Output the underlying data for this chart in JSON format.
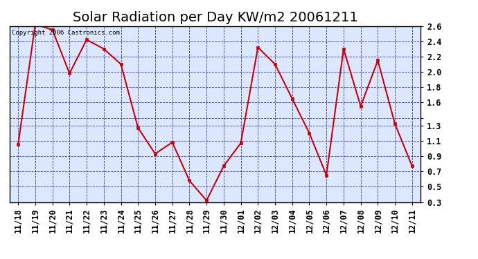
{
  "title": "Solar Radiation per Day KW/m2 20061211",
  "copyright": "Copyright 2006 Castronics.com",
  "labels": [
    "11/18",
    "11/19",
    "11/20",
    "11/21",
    "11/22",
    "11/23",
    "11/24",
    "11/25",
    "11/26",
    "11/27",
    "11/28",
    "11/29",
    "11/30",
    "12/01",
    "12/02",
    "12/03",
    "12/04",
    "12/05",
    "12/06",
    "12/07",
    "12/08",
    "12/09",
    "12/10",
    "12/11"
  ],
  "values": [
    1.05,
    2.62,
    2.55,
    1.98,
    2.42,
    2.3,
    2.1,
    1.27,
    0.93,
    1.08,
    0.58,
    0.32,
    0.77,
    1.07,
    2.32,
    2.1,
    1.65,
    1.2,
    0.65,
    2.3,
    1.55,
    2.15,
    1.32,
    0.77
  ],
  "ylim": [
    0.3,
    2.6
  ],
  "yticks": [
    0.3,
    0.5,
    0.7,
    0.9,
    1.1,
    1.3,
    1.4,
    1.6,
    1.8,
    2.0,
    2.2,
    2.4,
    2.6
  ],
  "ytick_labels": [
    "0.3",
    "0.5",
    "0.7",
    "0.9",
    "1.1",
    "1.3",
    "",
    "1.6",
    "1.8",
    "2.0",
    "2.2",
    "2.4",
    "2.6"
  ],
  "line_color": "#cc0000",
  "marker_color": "#cc0000",
  "bg_color": "#ffffff",
  "plot_bg_color": "#dce8ff",
  "grid_color": "#2222cc",
  "title_fontsize": 14,
  "tick_fontsize": 8.5
}
